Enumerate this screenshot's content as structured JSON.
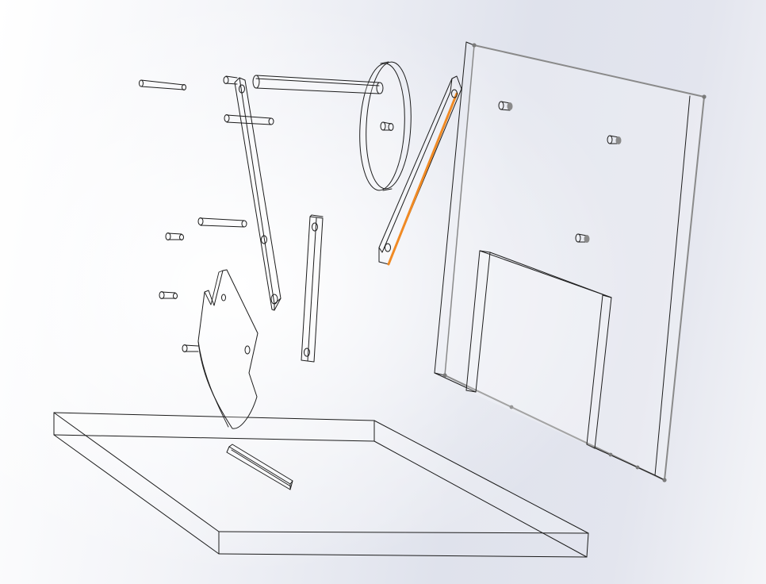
{
  "viewport": {
    "background_colors": [
      "#ffffff",
      "#dfe2ec",
      "#f4f5f8"
    ]
  },
  "colors": {
    "edge": "#1c1c1c",
    "edge_selected_plate": "#8a8a8a",
    "vertex": "#7a7a7a",
    "highlight": "#f08a24"
  },
  "parts": [
    "base-plate",
    "back-plate",
    "back-plate-tab",
    "cam-plate",
    "disc-wheel",
    "long-link",
    "short-link",
    "highlighted-link",
    "slot-block",
    "axle-rod",
    "pin"
  ],
  "highlighted_part": "highlighted-link"
}
